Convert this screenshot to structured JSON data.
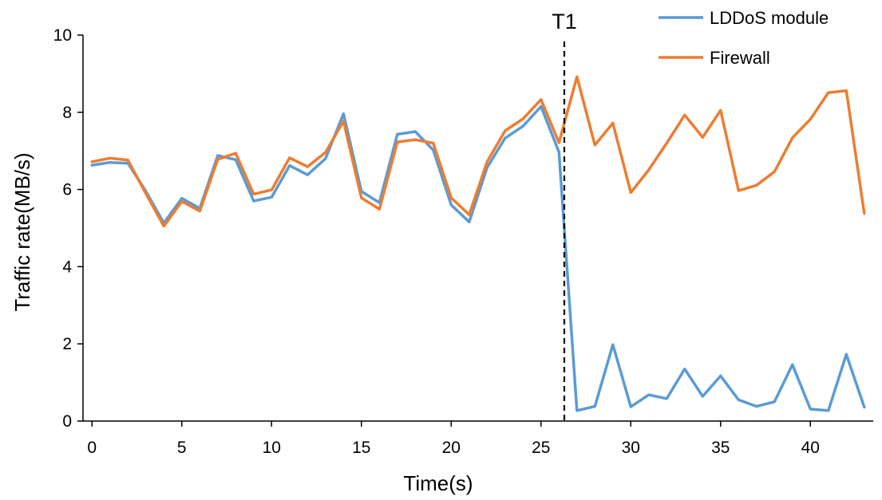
{
  "chart_data": {
    "type": "line",
    "title": "",
    "xlabel": "Time(s)",
    "ylabel": "Traffic rate(MB/s)",
    "xlim": [
      -0.5,
      43.5
    ],
    "ylim": [
      0,
      10
    ],
    "xticks": [
      0,
      5,
      10,
      15,
      20,
      25,
      30,
      35,
      40
    ],
    "yticks": [
      0,
      2,
      4,
      6,
      8,
      10
    ],
    "grid": false,
    "legend_position": "top-right",
    "x": [
      0,
      1,
      2,
      3,
      4,
      5,
      6,
      7,
      8,
      9,
      10,
      11,
      12,
      13,
      14,
      15,
      16,
      17,
      18,
      19,
      20,
      21,
      22,
      23,
      24,
      25,
      26,
      27,
      28,
      29,
      30,
      31,
      32,
      33,
      34,
      35,
      36,
      37,
      38,
      39,
      40,
      41,
      42,
      43
    ],
    "series": [
      {
        "name": "LDDoS module",
        "color": "#5B9BD5",
        "values": [
          6.63,
          6.7,
          6.68,
          5.95,
          5.13,
          5.77,
          5.51,
          6.88,
          6.77,
          5.7,
          5.8,
          6.62,
          6.38,
          6.8,
          7.96,
          5.95,
          5.66,
          7.43,
          7.5,
          7.02,
          5.6,
          5.16,
          6.57,
          7.33,
          7.64,
          8.15,
          6.97,
          0.27,
          0.38,
          1.98,
          0.37,
          0.68,
          0.58,
          1.35,
          0.64,
          1.17,
          0.55,
          0.38,
          0.5,
          1.46,
          0.31,
          0.27,
          1.73,
          0.36
        ]
      },
      {
        "name": "Firewall",
        "color": "#ED7D31",
        "values": [
          6.72,
          6.81,
          6.76,
          5.89,
          5.05,
          5.69,
          5.44,
          6.78,
          6.94,
          5.88,
          5.99,
          6.82,
          6.59,
          6.96,
          7.77,
          5.78,
          5.49,
          7.23,
          7.29,
          7.2,
          5.78,
          5.35,
          6.72,
          7.52,
          7.83,
          8.33,
          7.21,
          8.92,
          7.15,
          7.72,
          5.92,
          6.51,
          7.2,
          7.93,
          7.35,
          8.05,
          5.97,
          6.11,
          6.46,
          7.34,
          7.82,
          8.51,
          8.56,
          5.38
        ]
      }
    ],
    "annotations": [
      {
        "label": "T1",
        "x": 26.3,
        "style": "dashed-vertical-line"
      }
    ]
  }
}
